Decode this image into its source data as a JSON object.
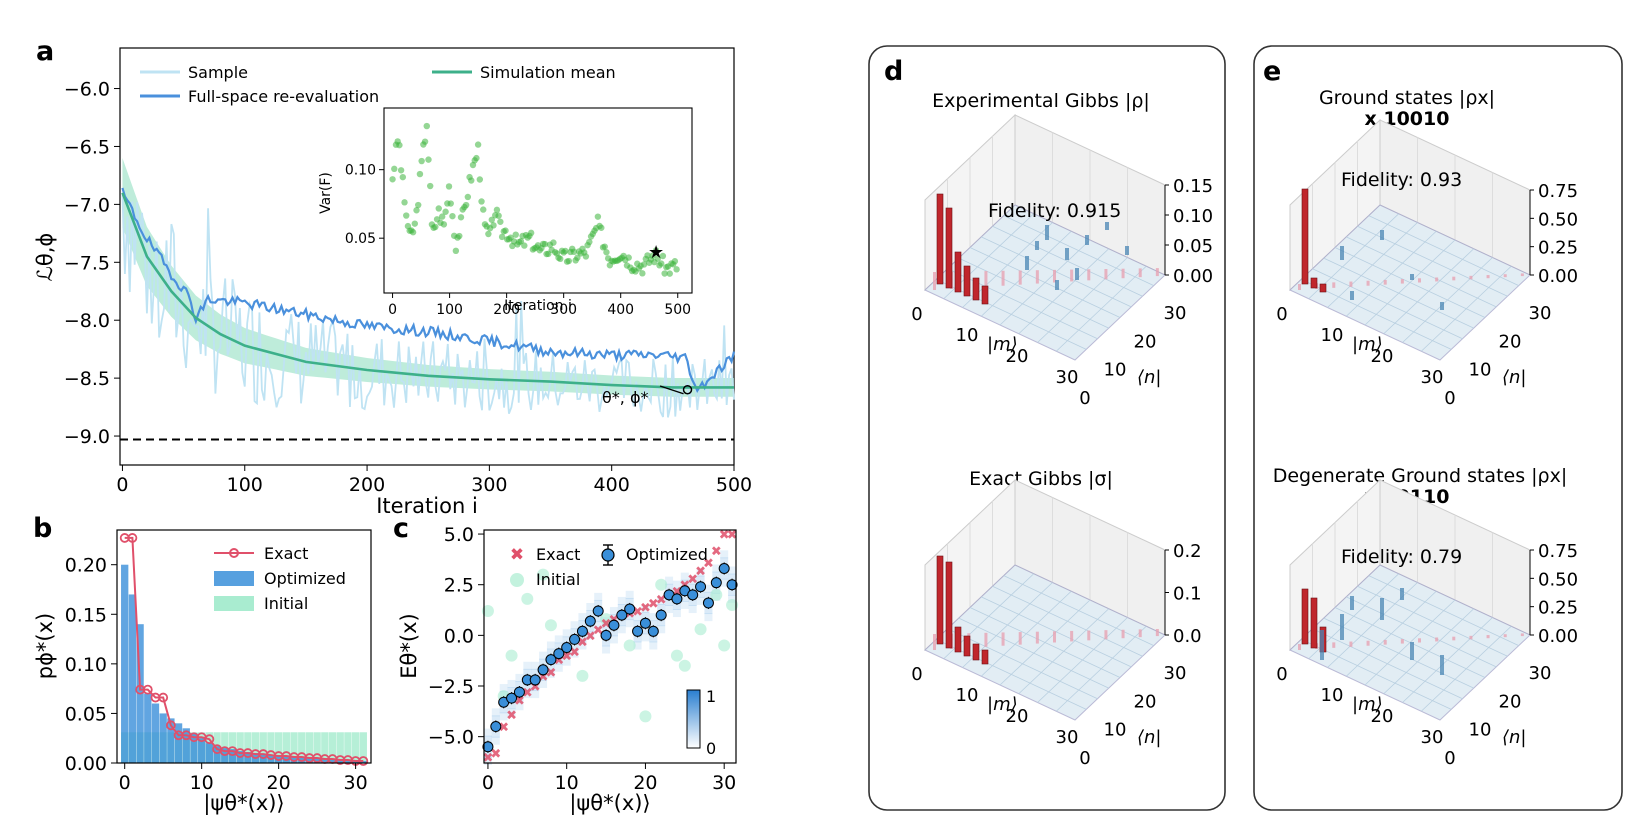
{
  "panel_labels": {
    "a": "a",
    "b": "b",
    "c": "c",
    "d": "d",
    "e": "e"
  },
  "colors": {
    "sample": "#bfe3f3",
    "full_space": "#4a90dc",
    "sim_mean": "#3db08a",
    "sim_band": "#a8e6cd",
    "inset_green": "#3cb53c",
    "exact_red": "#e0506a",
    "optimized_blue": "#3a8fd9",
    "initial_green": "#a9ecd0",
    "bar_red": "#c0262c",
    "bar_blue": "#4a86b4"
  },
  "chart_data": [
    {
      "id": "a",
      "type": "line",
      "xlabel": "Iteration i",
      "ylabel": "ℒθ,ϕ",
      "xlim": [
        0,
        500
      ],
      "ylim": [
        -9.25,
        -5.65
      ],
      "xticks": [
        0,
        100,
        200,
        300,
        400,
        500
      ],
      "yticks": [
        -6.0,
        -6.5,
        -7.0,
        -7.5,
        -8.0,
        -8.5,
        -9.0
      ],
      "legend": [
        "Sample",
        "Full-space re-evaluation",
        "Simulation mean"
      ],
      "reference_line": -9.03,
      "annotation": "θ*, ϕ*",
      "annotation_point": [
        462,
        -8.6
      ],
      "full_space": {
        "x": [
          0,
          20,
          40,
          55,
          60,
          70,
          100,
          150,
          200,
          250,
          300,
          350,
          400,
          440,
          460,
          470,
          500
        ],
        "y": [
          -6.9,
          -7.3,
          -7.6,
          -7.8,
          -7.98,
          -7.82,
          -7.85,
          -7.95,
          -8.05,
          -8.1,
          -8.18,
          -8.27,
          -8.3,
          -8.3,
          -8.32,
          -8.6,
          -8.3
        ]
      },
      "sim_mean": {
        "x": [
          0,
          20,
          40,
          60,
          80,
          100,
          150,
          200,
          250,
          300,
          350,
          400,
          450,
          500
        ],
        "y": [
          -6.9,
          -7.45,
          -7.75,
          -7.98,
          -8.12,
          -8.22,
          -8.36,
          -8.43,
          -8.48,
          -8.51,
          -8.53,
          -8.56,
          -8.58,
          -8.58
        ]
      },
      "inset": {
        "type": "scatter",
        "xlabel": "Iteration i",
        "ylabel": "Var(F)",
        "xlim": [
          -15,
          525
        ],
        "ylim": [
          0.01,
          0.145
        ],
        "xticks": [
          0,
          100,
          200,
          300,
          400,
          500
        ],
        "yticks": [
          0.05,
          0.1
        ],
        "x": [
          0,
          10,
          20,
          30,
          40,
          50,
          60,
          70,
          80,
          90,
          100,
          110,
          120,
          130,
          140,
          150,
          160,
          170,
          180,
          190,
          200,
          220,
          240,
          260,
          280,
          300,
          320,
          340,
          360,
          380,
          400,
          420,
          440,
          460,
          480,
          500
        ],
        "y": [
          0.095,
          0.125,
          0.08,
          0.05,
          0.06,
          0.1,
          0.135,
          0.05,
          0.07,
          0.06,
          0.09,
          0.045,
          0.06,
          0.08,
          0.1,
          0.115,
          0.06,
          0.05,
          0.07,
          0.055,
          0.055,
          0.045,
          0.05,
          0.04,
          0.045,
          0.035,
          0.038,
          0.04,
          0.06,
          0.035,
          0.04,
          0.032,
          0.03,
          0.038,
          0.028,
          0.03
        ],
        "star": [
          462,
          0.04
        ]
      }
    },
    {
      "id": "b",
      "type": "bar",
      "xlabel": "|ψθ*(x)⟩",
      "ylabel": "pϕ*(x)",
      "xlim": [
        -1,
        32
      ],
      "ylim": [
        0,
        0.235
      ],
      "xticks": [
        0,
        10,
        20,
        30
      ],
      "yticks": [
        0.0,
        0.05,
        0.1,
        0.15,
        0.2
      ],
      "legend": [
        "Exact",
        "Optimized",
        "Initial"
      ],
      "exact": [
        0.227,
        0.227,
        0.074,
        0.074,
        0.066,
        0.066,
        0.038,
        0.028,
        0.028,
        0.026,
        0.026,
        0.024,
        0.014,
        0.012,
        0.012,
        0.01,
        0.01,
        0.009,
        0.009,
        0.008,
        0.007,
        0.007,
        0.006,
        0.006,
        0.005,
        0.005,
        0.004,
        0.004,
        0.003,
        0.003,
        0.002,
        0.002
      ],
      "optimized": [
        0.2,
        0.17,
        0.14,
        0.07,
        0.06,
        0.05,
        0.045,
        0.04,
        0.035,
        0.03,
        0.025,
        0.02,
        0.017,
        0.015,
        0.014,
        0.012,
        0.011,
        0.01,
        0.009,
        0.008,
        0.008,
        0.007,
        0.006,
        0.006,
        0.005,
        0.005,
        0.004,
        0.004,
        0.003,
        0.003,
        0.002,
        0.002
      ],
      "initial": 0.031
    },
    {
      "id": "c",
      "type": "scatter",
      "xlabel": "|ψθ*(x)⟩",
      "ylabel": "Eθ*(x)",
      "xlim": [
        -0.5,
        31.5
      ],
      "ylim": [
        -6.3,
        5.2
      ],
      "xticks": [
        0,
        10,
        20,
        30
      ],
      "yticks": [
        5.0,
        2.5,
        0.0,
        -2.5,
        -5.0
      ],
      "legend": [
        "Exact",
        "Optimized",
        "Initial"
      ],
      "colorbar": {
        "min": "0",
        "max": "1"
      },
      "exact": [
        -6.0,
        -5.8,
        -4.5,
        -3.9,
        -3.2,
        -2.8,
        -2.5,
        -2.0,
        -1.8,
        -1.2,
        -1.0,
        -0.8,
        -0.3,
        0.0,
        0.3,
        0.6,
        0.8,
        1.0,
        1.1,
        1.2,
        1.4,
        1.6,
        1.8,
        2.0,
        2.2,
        2.5,
        2.8,
        3.2,
        3.6,
        4.2,
        5.0,
        5.0
      ],
      "optimized": [
        -5.5,
        -4.5,
        -3.3,
        -3.1,
        -2.8,
        -2.2,
        -2.2,
        -1.7,
        -1.2,
        -0.9,
        -0.6,
        -0.2,
        0.2,
        0.7,
        1.2,
        0.0,
        0.5,
        1.0,
        1.3,
        0.2,
        0.6,
        0.2,
        1.0,
        2.0,
        1.8,
        2.2,
        2.0,
        2.4,
        1.6,
        2.6,
        3.3,
        2.5
      ],
      "initial_x": [
        0,
        3,
        5,
        8,
        12,
        15,
        18,
        22,
        25,
        27,
        29,
        30,
        31,
        2,
        7,
        20,
        24
      ],
      "initial_y": [
        1.2,
        -1.0,
        1.8,
        0.5,
        -2.0,
        0.8,
        -0.5,
        2.5,
        -1.5,
        0.3,
        2.0,
        -0.5,
        1.5,
        -3.0,
        3.0,
        -4.0,
        -1.0
      ]
    },
    {
      "id": "d_top",
      "type": "bar3d",
      "title": "Experimental Gibbs |ρ|",
      "annotation": "Fidelity: 0.915",
      "zticks": [
        "0.15",
        "0.10",
        "0.05",
        "0.00"
      ],
      "x_axis": "|m⟩",
      "y_axis": "⟨n|",
      "xticks": [
        "0",
        "10",
        "20",
        "30"
      ],
      "yticks": [
        "30",
        "20",
        "10",
        "0"
      ]
    },
    {
      "id": "d_bottom",
      "type": "bar3d",
      "title": "Exact Gibbs |σ|",
      "zticks": [
        "0.2",
        "0.1",
        "0.0"
      ],
      "x_axis": "|m⟩",
      "y_axis": "⟨n|",
      "xticks": [
        "0",
        "10",
        "20",
        "30"
      ],
      "yticks": [
        "30",
        "20",
        "10",
        "0"
      ]
    },
    {
      "id": "e_top",
      "type": "bar3d",
      "title": "Ground states |ρx|",
      "subtitle": "x 10010",
      "annotation": "Fidelity: 0.93",
      "zticks": [
        "0.75",
        "0.50",
        "0.25",
        "0.00"
      ],
      "x_axis": "|m⟩",
      "y_axis": "⟨n|",
      "xticks": [
        "0",
        "10",
        "20",
        "30"
      ],
      "yticks": [
        "30",
        "20",
        "10",
        "0"
      ]
    },
    {
      "id": "e_bottom",
      "type": "bar3d",
      "title": "Degenerate Ground states |ρx|",
      "subtitle": "x 10110",
      "annotation": "Fidelity: 0.79",
      "zticks": [
        "0.75",
        "0.50",
        "0.25",
        "0.00"
      ],
      "x_axis": "|m⟩",
      "y_axis": "⟨n|",
      "xticks": [
        "0",
        "10",
        "20",
        "30"
      ],
      "yticks": [
        "30",
        "20",
        "10",
        "0"
      ]
    }
  ]
}
